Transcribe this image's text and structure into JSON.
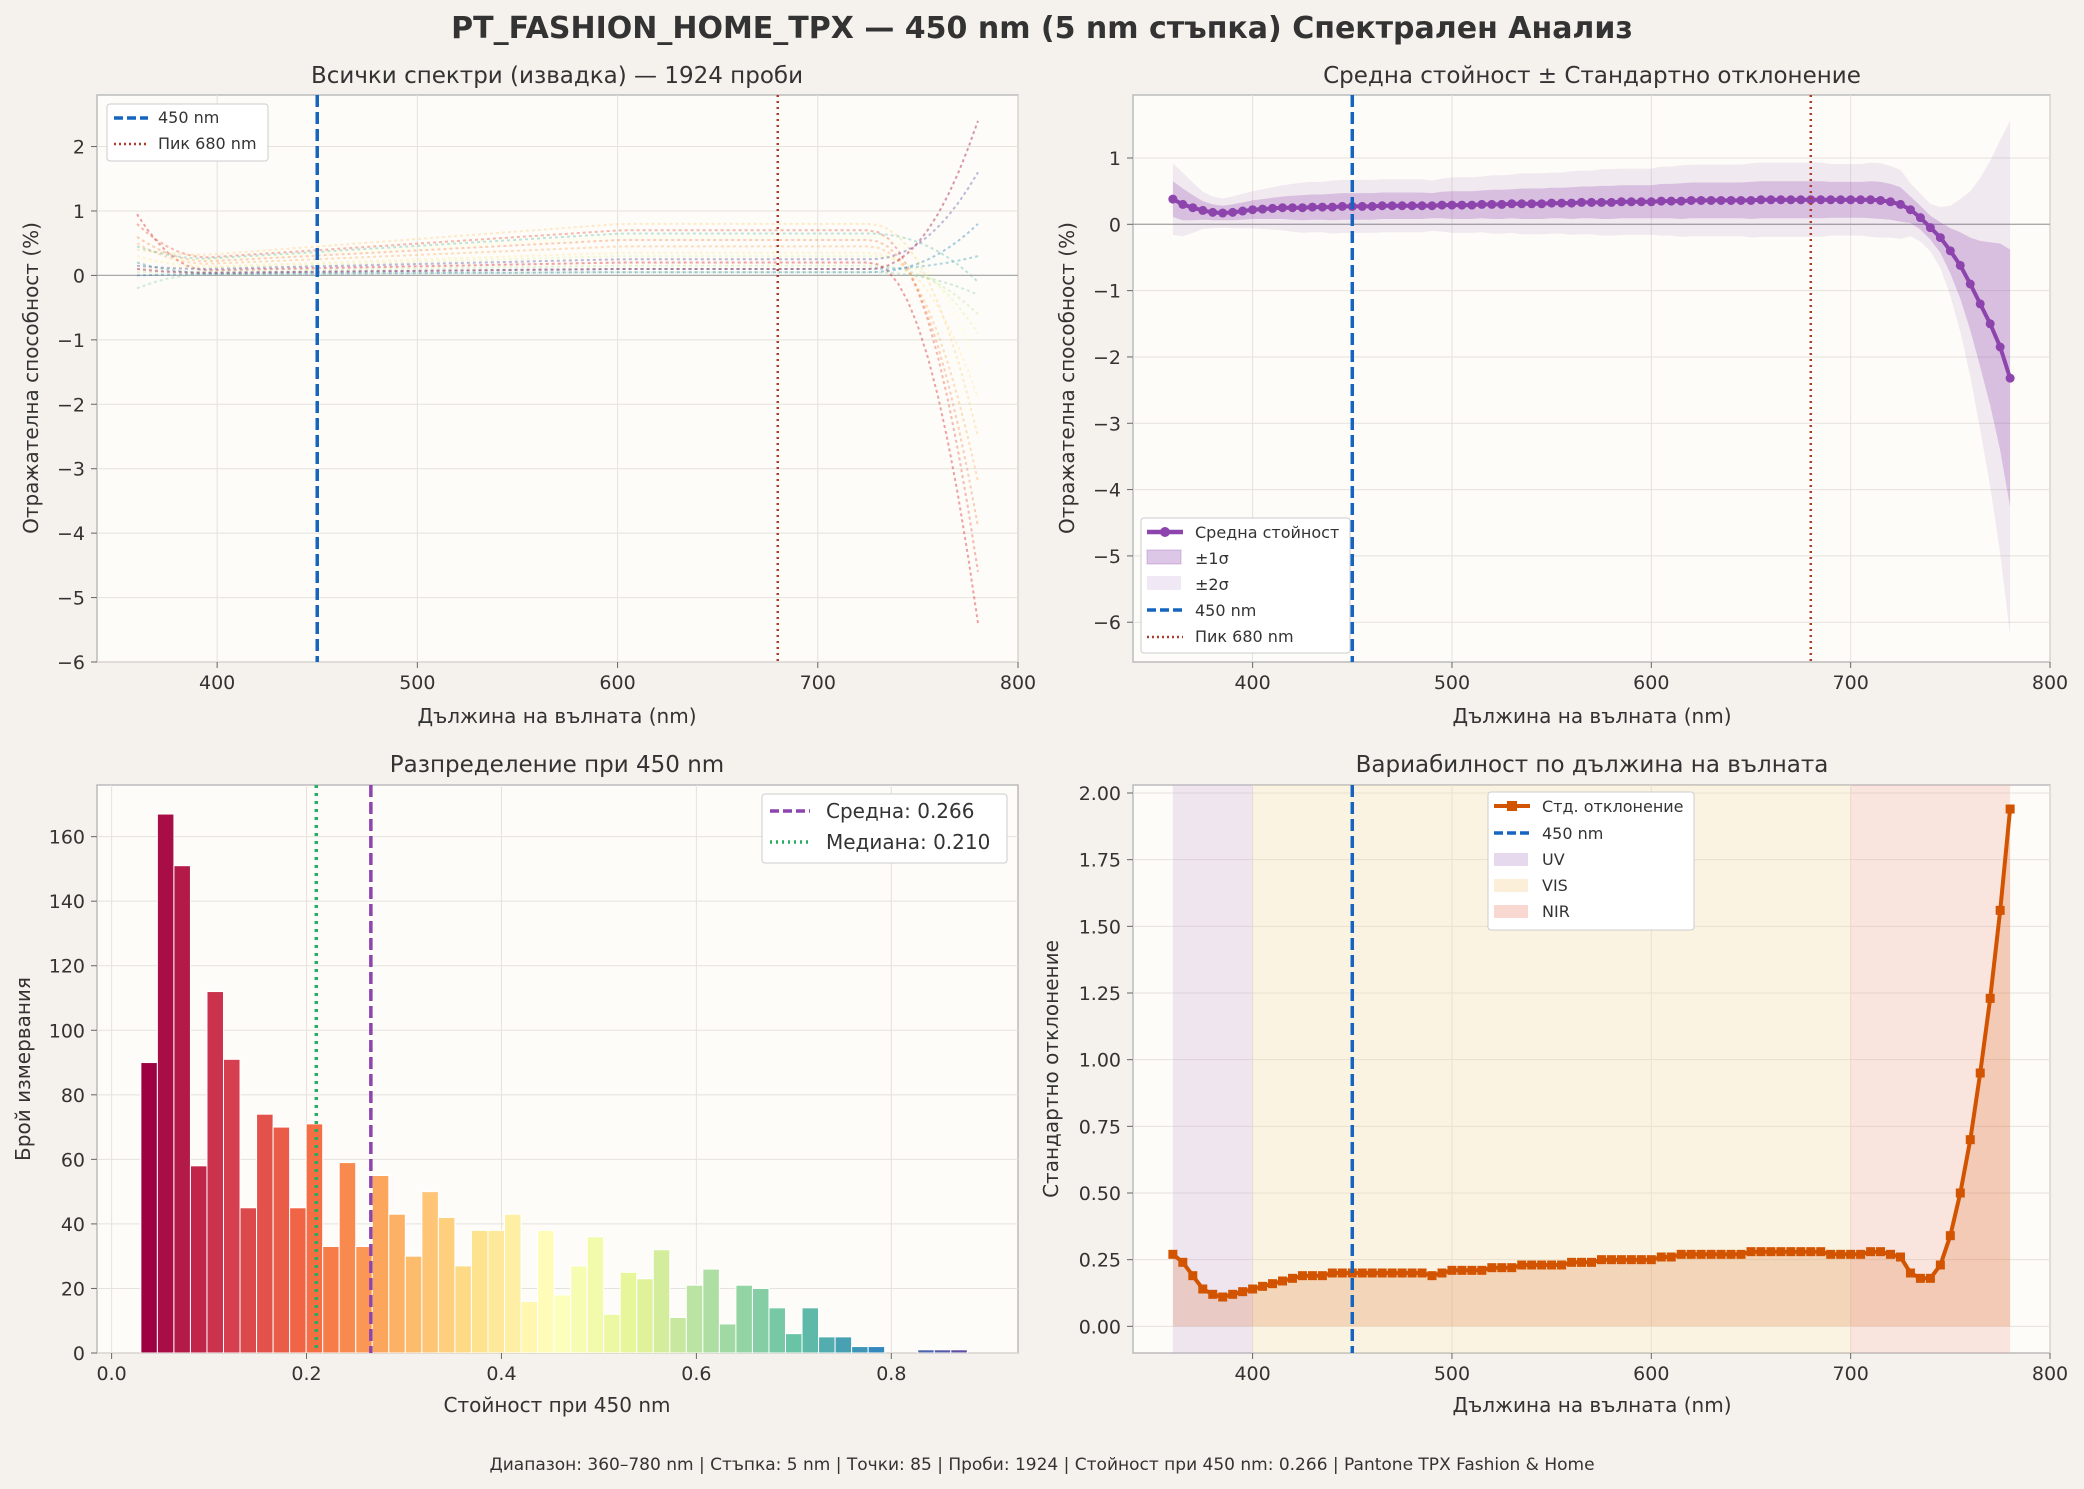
{
  "figure": {
    "title": "PT_FASHION_HOME_TPX — 450 nm (5 nm стъпка) Спектрален Анализ",
    "footer": "Диапазон: 360–780 nm  |  Стъпка: 5 nm  |  Точки: 85  |  Проби: 1924  |  Стойност при 450 nm: 0.266  |  Pantone TPX Fashion & Home"
  },
  "colors": {
    "background": "#f5f1ec",
    "plot_bg": "#fdfcf8",
    "marker_450": "#1565c0",
    "peak_680": "#b03a2e",
    "mean_line": "#8e44ad",
    "std_line": "#d35400",
    "median_line": "#27ae60"
  },
  "chart_data": [
    {
      "type": "line",
      "title": "Всички спектри (извадка) — 1924 проби",
      "xlabel": "Дължина на вълната (nm)",
      "ylabel": "Отражателна способност (%)",
      "xlim": [
        340,
        800
      ],
      "ylim": [
        -6,
        2.8
      ],
      "xticks": [
        "400",
        "500",
        "600",
        "700",
        "800"
      ],
      "yticks": [
        "−6",
        "−5",
        "−4",
        "−3",
        "−2",
        "−1",
        "0",
        "1",
        "2"
      ],
      "grid": true,
      "legend_position": "top-left",
      "legend": [
        "450 nm",
        "Пик 680 nm"
      ],
      "marker_x": 450,
      "peak_x": 680,
      "sample_curves": [
        {
          "start": 0.95,
          "plateau": 0.2,
          "end": -5.4
        },
        {
          "start": 0.8,
          "plateau": 0.7,
          "end": -4.6
        },
        {
          "start": 0.6,
          "plateau": 0.55,
          "end": -3.9
        },
        {
          "start": 0.5,
          "plateau": 0.45,
          "end": -3.2
        },
        {
          "start": 0.4,
          "plateau": 0.8,
          "end": -2.5
        },
        {
          "start": 0.3,
          "plateau": 0.35,
          "end": -1.9
        },
        {
          "start": 0.2,
          "plateau": 0.6,
          "end": -1.4
        },
        {
          "start": 0.1,
          "plateau": 0.3,
          "end": -0.9
        },
        {
          "start": 0.05,
          "plateau": 0.15,
          "end": -0.6
        },
        {
          "start": -0.2,
          "plateau": 0.05,
          "end": -0.3
        },
        {
          "start": 0.45,
          "plateau": 0.65,
          "end": -0.1
        },
        {
          "start": 0.2,
          "plateau": 0.1,
          "end": 0.3
        },
        {
          "start": 0.0,
          "plateau": 0.05,
          "end": 0.8
        },
        {
          "start": 0.15,
          "plateau": 0.25,
          "end": 1.6
        },
        {
          "start": 0.1,
          "plateau": 0.1,
          "end": 2.4
        }
      ]
    },
    {
      "type": "line",
      "title": "Средна стойност ± Стандартно отклонение",
      "xlabel": "Дължина на вълната (nm)",
      "ylabel": "Отражателна способност (%)",
      "xlim": [
        340,
        800
      ],
      "ylim": [
        -6.6,
        1.95
      ],
      "xticks": [
        "400",
        "500",
        "600",
        "700",
        "800"
      ],
      "yticks": [
        "−6",
        "−5",
        "−4",
        "−3",
        "−2",
        "−1",
        "0",
        "1"
      ],
      "grid": true,
      "legend_position": "bottom-left",
      "legend": [
        "Средна стойност",
        "±1σ",
        "±2σ",
        "450 nm",
        "Пик 680 nm"
      ],
      "x": [
        360,
        365,
        370,
        375,
        380,
        385,
        390,
        395,
        400,
        405,
        410,
        415,
        420,
        425,
        430,
        435,
        440,
        445,
        450,
        455,
        460,
        465,
        470,
        475,
        480,
        485,
        490,
        495,
        500,
        505,
        510,
        515,
        520,
        525,
        530,
        535,
        540,
        545,
        550,
        555,
        560,
        565,
        570,
        575,
        580,
        585,
        590,
        595,
        600,
        605,
        610,
        615,
        620,
        625,
        630,
        635,
        640,
        645,
        650,
        655,
        660,
        665,
        670,
        675,
        680,
        685,
        690,
        695,
        700,
        705,
        710,
        715,
        720,
        725,
        730,
        735,
        740,
        745,
        750,
        755,
        760,
        765,
        770,
        775,
        780
      ],
      "mean": [
        0.38,
        0.3,
        0.25,
        0.21,
        0.18,
        0.17,
        0.18,
        0.2,
        0.22,
        0.23,
        0.24,
        0.25,
        0.25,
        0.25,
        0.26,
        0.26,
        0.26,
        0.27,
        0.27,
        0.27,
        0.27,
        0.28,
        0.28,
        0.28,
        0.28,
        0.28,
        0.28,
        0.29,
        0.29,
        0.29,
        0.29,
        0.3,
        0.3,
        0.3,
        0.31,
        0.31,
        0.31,
        0.31,
        0.32,
        0.32,
        0.32,
        0.33,
        0.33,
        0.33,
        0.33,
        0.34,
        0.34,
        0.34,
        0.34,
        0.35,
        0.35,
        0.35,
        0.36,
        0.36,
        0.36,
        0.36,
        0.36,
        0.36,
        0.36,
        0.37,
        0.37,
        0.37,
        0.37,
        0.37,
        0.37,
        0.37,
        0.37,
        0.37,
        0.37,
        0.37,
        0.37,
        0.36,
        0.34,
        0.3,
        0.22,
        0.1,
        -0.05,
        -0.2,
        -0.4,
        -0.62,
        -0.9,
        -1.2,
        -1.5,
        -1.85,
        -2.32
      ],
      "std": [
        0.27,
        0.24,
        0.19,
        0.14,
        0.12,
        0.11,
        0.12,
        0.13,
        0.14,
        0.15,
        0.16,
        0.17,
        0.18,
        0.19,
        0.19,
        0.19,
        0.2,
        0.2,
        0.2,
        0.2,
        0.2,
        0.2,
        0.2,
        0.2,
        0.2,
        0.2,
        0.19,
        0.2,
        0.21,
        0.21,
        0.21,
        0.21,
        0.22,
        0.22,
        0.22,
        0.23,
        0.23,
        0.23,
        0.23,
        0.23,
        0.24,
        0.24,
        0.24,
        0.25,
        0.25,
        0.25,
        0.25,
        0.25,
        0.25,
        0.26,
        0.26,
        0.27,
        0.27,
        0.27,
        0.27,
        0.27,
        0.27,
        0.27,
        0.28,
        0.28,
        0.28,
        0.28,
        0.28,
        0.28,
        0.28,
        0.28,
        0.27,
        0.27,
        0.27,
        0.27,
        0.28,
        0.28,
        0.27,
        0.26,
        0.2,
        0.18,
        0.18,
        0.23,
        0.34,
        0.5,
        0.7,
        0.95,
        1.23,
        1.56,
        1.94
      ],
      "marker_x": 450,
      "peak_x": 680
    },
    {
      "type": "bar",
      "title": "Разпределение при 450 nm",
      "xlabel": "Стойност при 450 nm",
      "ylabel": "Брой измервания",
      "xlim": [
        -0.015,
        0.93
      ],
      "ylim": [
        0,
        176
      ],
      "xticks": [
        "0.0",
        "0.2",
        "0.4",
        "0.6",
        "0.8"
      ],
      "yticks": [
        "0",
        "20",
        "40",
        "60",
        "80",
        "100",
        "120",
        "140",
        "160"
      ],
      "grid": true,
      "legend_position": "top-right",
      "legend": [
        "Средна: 0.266",
        "Медиана: 0.210"
      ],
      "mean": 0.266,
      "median": 0.21,
      "bin_start": 0.03,
      "bin_width": 0.01696,
      "values": [
        90,
        167,
        151,
        58,
        112,
        91,
        45,
        74,
        70,
        45,
        71,
        33,
        59,
        33,
        55,
        43,
        30,
        50,
        42,
        27,
        38,
        38,
        43,
        16,
        38,
        18,
        27,
        36,
        12,
        25,
        23,
        32,
        11,
        21,
        26,
        9,
        21,
        20,
        14,
        6,
        14,
        5,
        5,
        2,
        2,
        0,
        0,
        1,
        1,
        1
      ]
    },
    {
      "type": "area",
      "title": "Вариабилност по дължина на вълната",
      "xlabel": "Дължина на вълната (nm)",
      "ylabel": "Стандартно отклонение",
      "xlim": [
        340,
        800
      ],
      "ylim": [
        -0.1,
        2.03
      ],
      "xticks": [
        "400",
        "500",
        "600",
        "700",
        "800"
      ],
      "yticks": [
        "0.00",
        "0.25",
        "0.50",
        "0.75",
        "1.00",
        "1.25",
        "1.50",
        "1.75",
        "2.00"
      ],
      "grid": true,
      "legend_position": "top-center",
      "legend": [
        "Стд. отклонение",
        "450 nm",
        "UV",
        "VIS",
        "NIR"
      ],
      "regions": [
        {
          "name": "UV",
          "from": 360,
          "to": 400,
          "color": "#c8a8d8"
        },
        {
          "name": "VIS",
          "from": 400,
          "to": 700,
          "color": "#f9dcaa"
        },
        {
          "name": "NIR",
          "from": 700,
          "to": 780,
          "color": "#f0a89a"
        }
      ],
      "marker_x": 450
    }
  ]
}
